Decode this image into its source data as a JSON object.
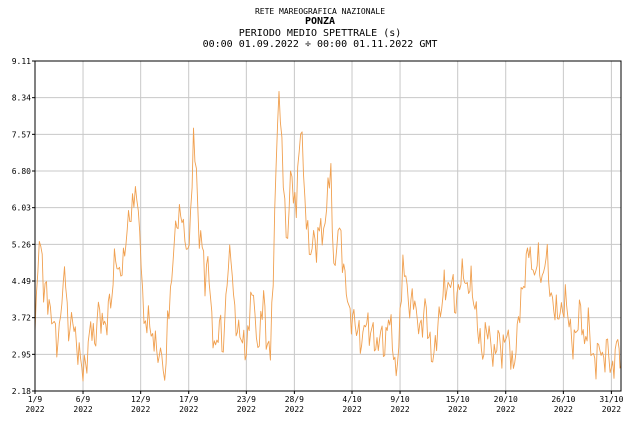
{
  "header": {
    "network": "RETE MAREOGRAFICA NAZIONALE",
    "station": "PONZA",
    "parameter": "PERIODO MEDIO SPETTRALE (s)",
    "period": "00:00 01.09.2022 ÷ 00:00 01.11.2022 GMT"
  },
  "colors": {
    "series": "#f0a050",
    "grid": "#c8c8c8",
    "axis": "#000000"
  },
  "chart_data": {
    "type": "line",
    "title": "PERIODO MEDIO SPETTRALE (s)",
    "xlabel": "",
    "ylabel": "",
    "ylim": [
      2.18,
      9.11
    ],
    "xlim_days": [
      0,
      61
    ],
    "grid": true,
    "y_ticks": [
      "2.18",
      "2.95",
      "3.72",
      "4.49",
      "5.26",
      "6.03",
      "6.80",
      "7.57",
      "8.34",
      "9.11"
    ],
    "x_ticks": [
      {
        "day": 0,
        "label": "1/9",
        "year": "2022"
      },
      {
        "day": 5,
        "label": "6/9",
        "year": "2022"
      },
      {
        "day": 11,
        "label": "12/9",
        "year": "2022"
      },
      {
        "day": 16,
        "label": "17/9",
        "year": "2022"
      },
      {
        "day": 22,
        "label": "23/9",
        "year": "2022"
      },
      {
        "day": 27,
        "label": "28/9",
        "year": "2022"
      },
      {
        "day": 33,
        "label": "4/10",
        "year": "2022"
      },
      {
        "day": 38,
        "label": "9/10",
        "year": "2022"
      },
      {
        "day": 44,
        "label": "15/10",
        "year": "2022"
      },
      {
        "day": 49,
        "label": "20/10",
        "year": "2022"
      },
      {
        "day": 55,
        "label": "26/10",
        "year": "2022"
      },
      {
        "day": 60,
        "label": "31/10",
        "year": "2022"
      }
    ],
    "series": [
      {
        "values": [
          [
            0.0,
            3.3
          ],
          [
            0.3,
            4.8
          ],
          [
            0.6,
            5.3
          ],
          [
            0.9,
            4.0
          ],
          [
            1.2,
            4.4
          ],
          [
            1.6,
            3.8
          ],
          [
            2.0,
            3.5
          ],
          [
            2.4,
            3.2
          ],
          [
            2.8,
            4.1
          ],
          [
            3.2,
            4.7
          ],
          [
            3.5,
            3.5
          ],
          [
            3.8,
            3.8
          ],
          [
            4.2,
            3.3
          ],
          [
            4.6,
            3.0
          ],
          [
            5.0,
            2.5
          ],
          [
            5.4,
            2.9
          ],
          [
            5.8,
            3.6
          ],
          [
            6.2,
            3.1
          ],
          [
            6.6,
            4.0
          ],
          [
            7.0,
            3.5
          ],
          [
            7.5,
            3.7
          ],
          [
            8.0,
            4.2
          ],
          [
            8.4,
            5.1
          ],
          [
            8.8,
            4.6
          ],
          [
            9.2,
            4.8
          ],
          [
            9.6,
            5.7
          ],
          [
            10.0,
            5.9
          ],
          [
            10.3,
            6.3
          ],
          [
            10.6,
            6.5
          ],
          [
            10.9,
            5.6
          ],
          [
            11.2,
            4.2
          ],
          [
            11.5,
            3.6
          ],
          [
            11.8,
            4.0
          ],
          [
            12.1,
            3.4
          ],
          [
            12.4,
            3.3
          ],
          [
            12.8,
            3.0
          ],
          [
            13.2,
            2.8
          ],
          [
            13.5,
            2.2
          ],
          [
            13.8,
            3.6
          ],
          [
            14.1,
            4.0
          ],
          [
            14.5,
            5.4
          ],
          [
            14.9,
            5.9
          ],
          [
            15.3,
            5.7
          ],
          [
            15.6,
            5.3
          ],
          [
            15.9,
            5.0
          ],
          [
            16.2,
            5.6
          ],
          [
            16.5,
            7.4
          ],
          [
            16.8,
            6.8
          ],
          [
            17.1,
            5.2
          ],
          [
            17.4,
            5.3
          ],
          [
            17.7,
            4.4
          ],
          [
            18.0,
            5.1
          ],
          [
            18.4,
            3.5
          ],
          [
            18.8,
            3.1
          ],
          [
            19.2,
            3.6
          ],
          [
            19.6,
            3.0
          ],
          [
            20.0,
            4.7
          ],
          [
            20.4,
            5.0
          ],
          [
            20.8,
            3.8
          ],
          [
            21.2,
            3.4
          ],
          [
            21.6,
            3.2
          ],
          [
            22.0,
            3.1
          ],
          [
            22.3,
            3.6
          ],
          [
            22.6,
            4.3
          ],
          [
            22.9,
            3.9
          ],
          [
            23.2,
            3.0
          ],
          [
            23.5,
            3.6
          ],
          [
            23.8,
            4.2
          ],
          [
            24.2,
            3.1
          ],
          [
            24.5,
            2.8
          ],
          [
            24.8,
            4.5
          ],
          [
            25.1,
            7.0
          ],
          [
            25.4,
            8.3
          ],
          [
            25.7,
            7.2
          ],
          [
            26.0,
            6.0
          ],
          [
            26.3,
            5.2
          ],
          [
            26.6,
            6.7
          ],
          [
            26.9,
            6.3
          ],
          [
            27.2,
            6.1
          ],
          [
            27.5,
            7.3
          ],
          [
            27.8,
            7.6
          ],
          [
            28.1,
            6.2
          ],
          [
            28.4,
            5.6
          ],
          [
            28.7,
            4.9
          ],
          [
            29.0,
            5.7
          ],
          [
            29.3,
            5.2
          ],
          [
            29.6,
            5.8
          ],
          [
            29.9,
            5.5
          ],
          [
            30.2,
            5.9
          ],
          [
            30.5,
            6.6
          ],
          [
            30.8,
            6.8
          ],
          [
            31.1,
            4.9
          ],
          [
            31.4,
            5.3
          ],
          [
            31.7,
            5.8
          ],
          [
            32.0,
            5.0
          ],
          [
            32.4,
            4.4
          ],
          [
            32.8,
            3.6
          ],
          [
            33.2,
            3.8
          ],
          [
            33.6,
            3.4
          ],
          [
            34.0,
            3.1
          ],
          [
            34.4,
            3.8
          ],
          [
            34.8,
            3.3
          ],
          [
            35.2,
            3.5
          ],
          [
            35.6,
            3.0
          ],
          [
            36.0,
            3.4
          ],
          [
            36.4,
            3.1
          ],
          [
            36.8,
            3.7
          ],
          [
            37.2,
            3.3
          ],
          [
            37.6,
            2.5
          ],
          [
            38.0,
            3.5
          ],
          [
            38.3,
            4.8
          ],
          [
            38.6,
            4.5
          ],
          [
            39.0,
            3.8
          ],
          [
            39.4,
            4.3
          ],
          [
            39.8,
            3.6
          ],
          [
            40.2,
            3.4
          ],
          [
            40.6,
            4.1
          ],
          [
            41.0,
            3.2
          ],
          [
            41.4,
            2.9
          ],
          [
            41.8,
            3.3
          ],
          [
            42.2,
            3.8
          ],
          [
            42.6,
            4.5
          ],
          [
            43.0,
            4.2
          ],
          [
            43.4,
            4.6
          ],
          [
            43.8,
            3.9
          ],
          [
            44.2,
            4.4
          ],
          [
            44.6,
            4.8
          ],
          [
            45.0,
            4.2
          ],
          [
            45.4,
            4.5
          ],
          [
            45.8,
            4.0
          ],
          [
            46.2,
            3.3
          ],
          [
            46.6,
            3.0
          ],
          [
            47.0,
            3.5
          ],
          [
            47.4,
            3.2
          ],
          [
            47.8,
            2.9
          ],
          [
            48.2,
            3.3
          ],
          [
            48.6,
            3.0
          ],
          [
            49.0,
            3.4
          ],
          [
            49.4,
            3.1
          ],
          [
            49.8,
            2.7
          ],
          [
            50.2,
            3.3
          ],
          [
            50.6,
            4.2
          ],
          [
            51.0,
            4.6
          ],
          [
            51.4,
            5.2
          ],
          [
            51.7,
            5.0
          ],
          [
            52.0,
            4.7
          ],
          [
            52.4,
            4.9
          ],
          [
            52.8,
            4.5
          ],
          [
            53.2,
            5.1
          ],
          [
            53.6,
            4.3
          ],
          [
            54.0,
            4.0
          ],
          [
            54.4,
            3.7
          ],
          [
            54.8,
            3.9
          ],
          [
            55.2,
            4.1
          ],
          [
            55.6,
            3.6
          ],
          [
            56.0,
            3.2
          ],
          [
            56.4,
            3.4
          ],
          [
            56.8,
            4.0
          ],
          [
            57.2,
            3.1
          ],
          [
            57.6,
            3.6
          ],
          [
            58.0,
            3.0
          ],
          [
            58.4,
            2.7
          ],
          [
            58.8,
            3.2
          ],
          [
            59.2,
            2.8
          ],
          [
            59.6,
            3.1
          ],
          [
            60.0,
            2.6
          ],
          [
            60.4,
            2.9
          ],
          [
            60.8,
            3.3
          ],
          [
            61.0,
            2.7
          ]
        ]
      }
    ]
  }
}
